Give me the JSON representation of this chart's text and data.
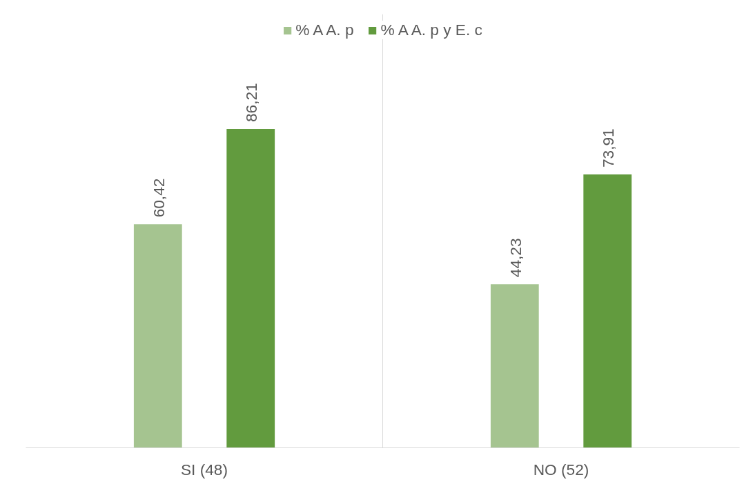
{
  "chart_data": {
    "type": "bar",
    "categories": [
      "SI (48)",
      "NO (52)"
    ],
    "series": [
      {
        "name": "% A A. p",
        "color": "#a5c490",
        "values": [
          60.42,
          44.23
        ],
        "value_labels": [
          "60,42",
          "44,23"
        ]
      },
      {
        "name": "% A A. p y E. c",
        "color": "#629b3e",
        "values": [
          86.21,
          73.91
        ],
        "value_labels": [
          "86,21",
          "73,91"
        ]
      }
    ],
    "grid": "x",
    "legend": "top"
  }
}
